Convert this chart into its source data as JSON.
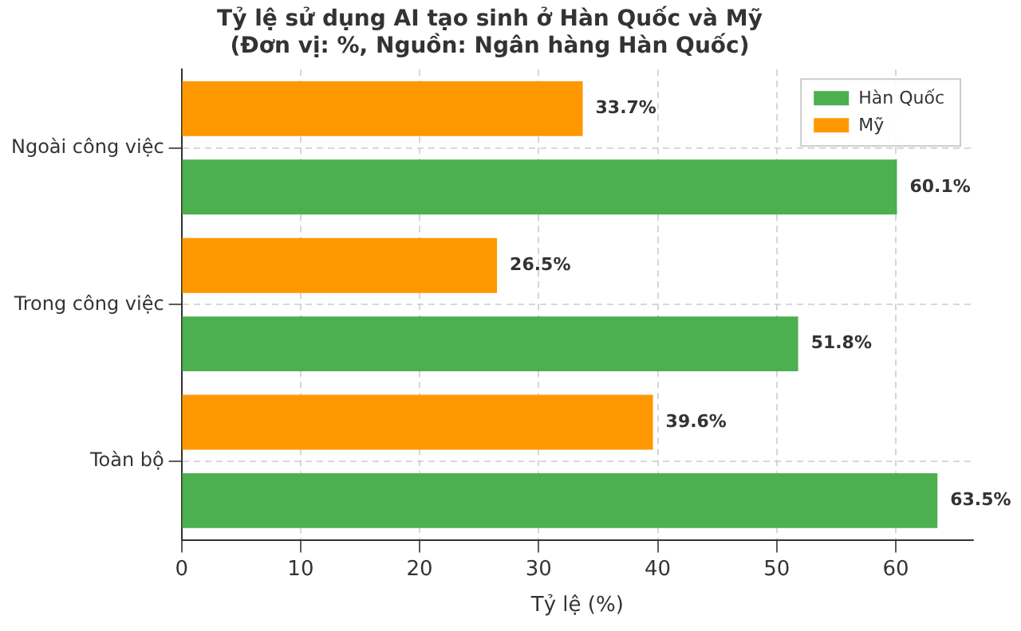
{
  "chart_data": {
    "type": "bar",
    "orientation": "horizontal",
    "title": "Tỷ lệ sử dụng AI tạo sinh ở Hàn Quốc và Mỹ\n(Đơn vị: %, Nguồn: Ngân hàng Hàn Quốc)",
    "xlabel": "Tỷ lệ (%)",
    "categories": [
      "Ngoài công việc",
      "Trong công việc",
      "Toàn bộ"
    ],
    "series": [
      {
        "name": "Hàn Quốc",
        "color": "#4caf50",
        "values": [
          60.1,
          51.8,
          63.5
        ],
        "value_labels": [
          "60.1%",
          "51.8%",
          "63.5%"
        ]
      },
      {
        "name": "Mỹ",
        "color": "#ff9800",
        "values": [
          33.7,
          26.5,
          39.6
        ],
        "value_labels": [
          "33.7%",
          "26.5%",
          "39.6%"
        ]
      }
    ],
    "xlim": [
      0,
      66.5
    ],
    "xticks": [
      0,
      10,
      20,
      30,
      40,
      50,
      60
    ],
    "grid": true,
    "legend": "top right"
  }
}
